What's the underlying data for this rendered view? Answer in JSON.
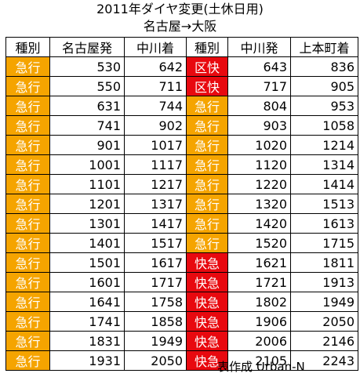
{
  "title": "2011年ダイヤ変更(土休日用)",
  "subtitle": "名古屋→大阪",
  "headers": [
    "種別",
    "名古屋発",
    "中川着",
    "種別",
    "中川発",
    "上本町着"
  ],
  "colors": {
    "kyuko": "#f5a400",
    "kukai_kaikyu": "#e8090f"
  },
  "rows": [
    [
      "急行",
      "530",
      "642",
      "区快",
      "643",
      "836"
    ],
    [
      "急行",
      "550",
      "711",
      "区快",
      "717",
      "905"
    ],
    [
      "急行",
      "631",
      "744",
      "急行",
      "804",
      "953"
    ],
    [
      "急行",
      "741",
      "902",
      "急行",
      "903",
      "1058"
    ],
    [
      "急行",
      "901",
      "1017",
      "急行",
      "1020",
      "1214"
    ],
    [
      "急行",
      "1001",
      "1117",
      "急行",
      "1120",
      "1314"
    ],
    [
      "急行",
      "1101",
      "1217",
      "急行",
      "1220",
      "1414"
    ],
    [
      "急行",
      "1201",
      "1317",
      "急行",
      "1320",
      "1513"
    ],
    [
      "急行",
      "1301",
      "1417",
      "急行",
      "1420",
      "1613"
    ],
    [
      "急行",
      "1401",
      "1517",
      "急行",
      "1520",
      "1715"
    ],
    [
      "急行",
      "1501",
      "1617",
      "快急",
      "1621",
      "1811"
    ],
    [
      "急行",
      "1601",
      "1717",
      "快急",
      "1721",
      "1913"
    ],
    [
      "急行",
      "1641",
      "1758",
      "快急",
      "1802",
      "1949"
    ],
    [
      "急行",
      "1741",
      "1858",
      "快急",
      "1906",
      "2050"
    ],
    [
      "急行",
      "1831",
      "1949",
      "快急",
      "2006",
      "2146"
    ],
    [
      "急行",
      "1931",
      "2050",
      "快急",
      "2105",
      "2243"
    ]
  ],
  "credit": "表作成 Urban-N"
}
